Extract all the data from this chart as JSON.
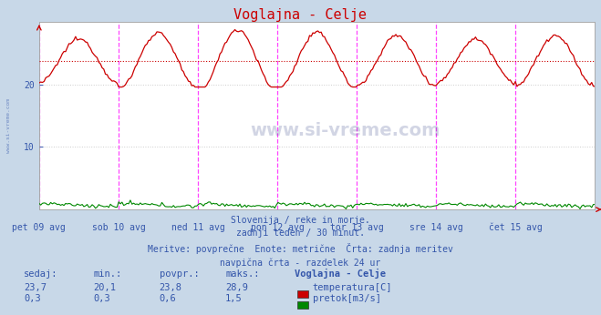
{
  "title": "Voglajna - Celje",
  "bg_color": "#c8d8e8",
  "plot_bg_color": "#ffffff",
  "x_labels": [
    "pet 09 avg",
    "sob 10 avg",
    "ned 11 avg",
    "pon 12 avg",
    "tor 13 avg",
    "sre 14 avg",
    "čet 15 avg"
  ],
  "y_ticks": [
    10,
    20
  ],
  "y_lim": [
    0,
    30
  ],
  "avg_line_y": 23.8,
  "avg_line_color": "#cc0000",
  "temp_color": "#cc0000",
  "flow_color": "#008800",
  "vline_color": "#ff44ff",
  "grid_color": "#cccccc",
  "text_color": "#3355aa",
  "subtitle_lines": [
    "Slovenija / reke in morje.",
    "zadnji teden / 30 minut.",
    "Meritve: povprečne  Enote: metrične  Črta: zadnja meritev",
    "navpična črta - razdelek 24 ur"
  ],
  "stat_headers": [
    "sedaj:",
    "min.:",
    "povpr.:",
    "maks.:",
    "Voglajna - Celje"
  ],
  "temp_stats": [
    "23,7",
    "20,1",
    "23,8",
    "28,9"
  ],
  "flow_stats": [
    "0,3",
    "0,3",
    "0,6",
    "1,5"
  ],
  "temp_label": "temperatura[C]",
  "flow_label": "pretok[m3/s]",
  "n_points": 336,
  "days": 7,
  "temp_min": 20.1,
  "temp_max": 28.9,
  "temp_avg": 23.8,
  "flow_min": 0.3,
  "flow_max": 1.5,
  "flow_avg": 0.6
}
